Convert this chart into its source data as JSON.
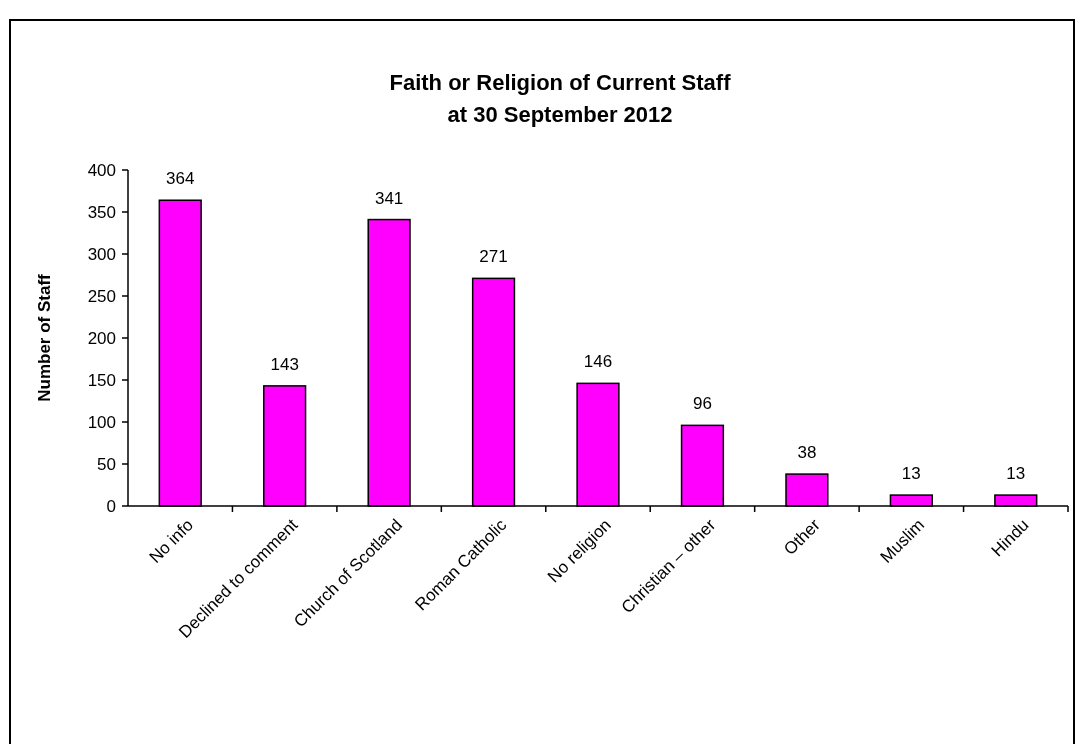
{
  "chart_data": {
    "type": "bar",
    "title": "Faith or Religion of Current Staff\nat 30 September 2012",
    "ylabel": "Number of Staff",
    "categories": [
      "No info",
      "Declined to comment",
      "Church of Scotland",
      "Roman Catholic",
      "No religion",
      "Christian – other",
      "Other",
      "Muslim",
      "Hindu"
    ],
    "values": [
      364,
      143,
      341,
      271,
      146,
      96,
      38,
      13,
      13
    ],
    "color": "#ff00ff",
    "ylim": [
      0,
      400
    ],
    "yticks": [
      0,
      50,
      100,
      150,
      200,
      250,
      300,
      350,
      400
    ],
    "data_labels": true,
    "grid": false
  }
}
